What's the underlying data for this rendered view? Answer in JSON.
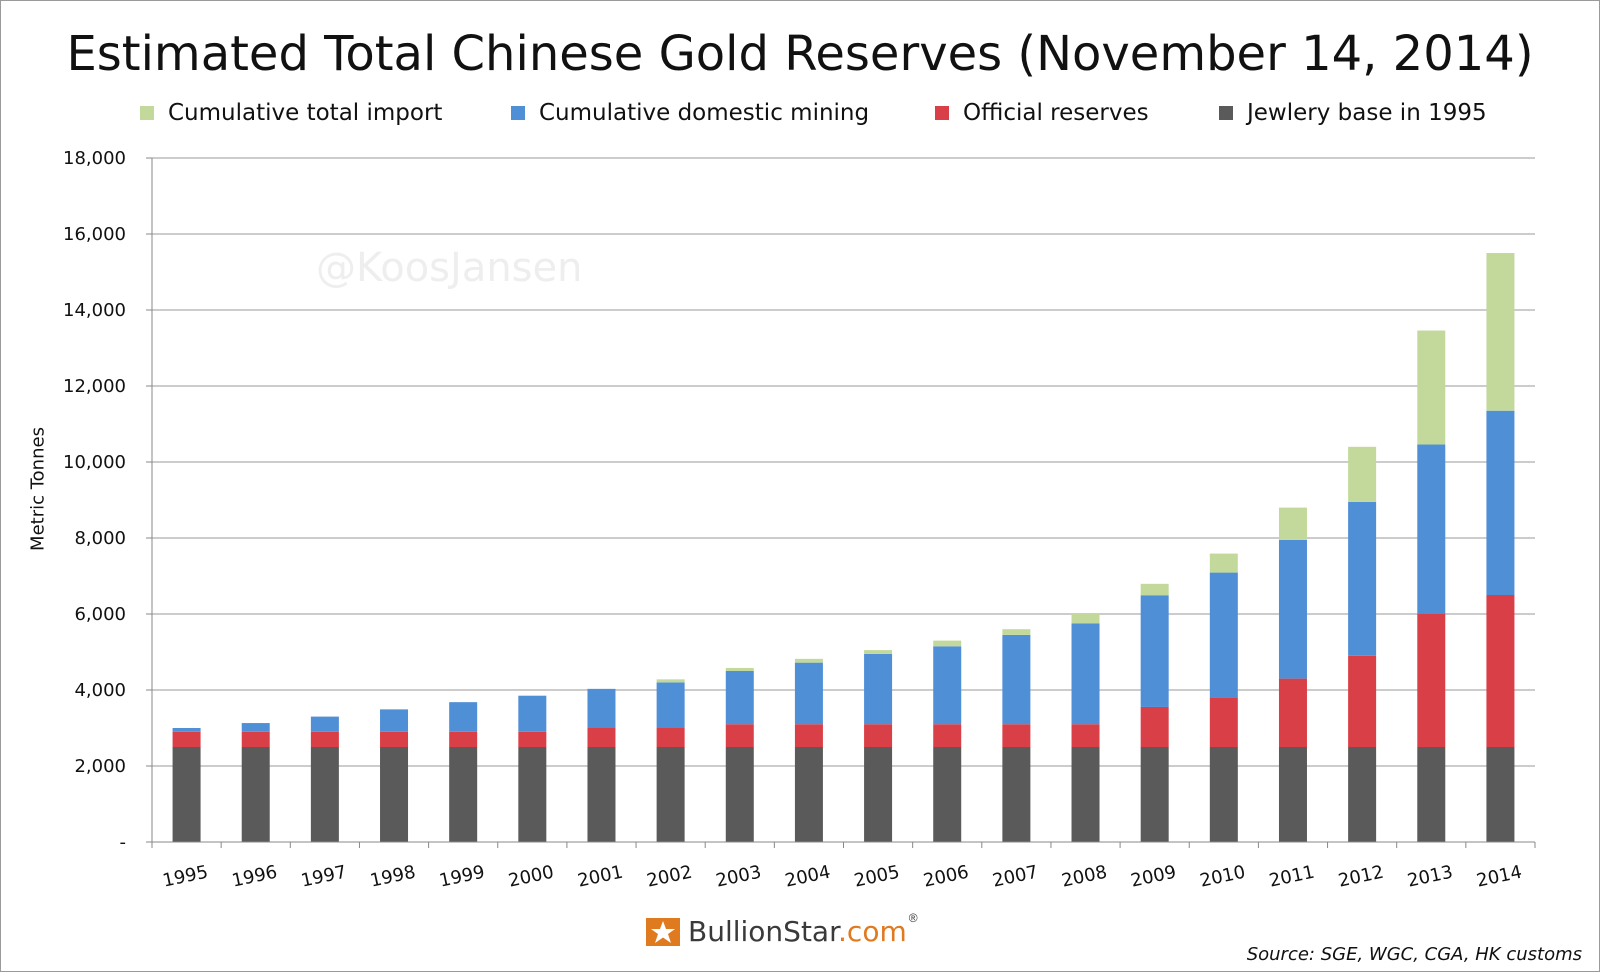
{
  "chart_data": {
    "type": "bar",
    "stacked": true,
    "title": "Estimated Total Chinese Gold Reserves (November 14, 2014)",
    "ylabel": "Metric Tonnes",
    "xlabel": "",
    "ylim": [
      0,
      18000
    ],
    "yticks": [
      0,
      2000,
      4000,
      6000,
      8000,
      10000,
      12000,
      14000,
      16000,
      18000
    ],
    "ytick_labels": [
      "-",
      "2,000",
      "4,000",
      "6,000",
      "8,000",
      "10,000",
      "12,000",
      "14,000",
      "16,000",
      "18,000"
    ],
    "grid": true,
    "legend_position": "top",
    "categories": [
      "1995",
      "1996",
      "1997",
      "1998",
      "1999",
      "2000",
      "2001",
      "2002",
      "2003",
      "2004",
      "2005",
      "2006",
      "2007",
      "2008",
      "2009",
      "2010",
      "2011",
      "2012",
      "2013",
      "2014"
    ],
    "series": [
      {
        "name": "Jewlery base in 1995",
        "color": "#5a5a5a",
        "values": [
          2500,
          2500,
          2500,
          2500,
          2500,
          2500,
          2500,
          2500,
          2500,
          2500,
          2500,
          2500,
          2500,
          2500,
          2500,
          2500,
          2500,
          2500,
          2500,
          2500
        ]
      },
      {
        "name": "Official reserves",
        "color": "#d93f46",
        "values": [
          400,
          400,
          400,
          400,
          400,
          400,
          500,
          500,
          600,
          600,
          600,
          600,
          600,
          600,
          1054,
          1300,
          1800,
          2400,
          3500,
          4000
        ]
      },
      {
        "name": "Cumulative domestic mining",
        "color": "#4f8fd6",
        "values": [
          100,
          230,
          400,
          590,
          780,
          950,
          1030,
          1200,
          1400,
          1620,
          1850,
          2050,
          2350,
          2650,
          2940,
          3290,
          3650,
          4050,
          4460,
          4850
        ]
      },
      {
        "name": "Cumulative total import",
        "color": "#c3d99b",
        "values": [
          0,
          0,
          0,
          0,
          0,
          0,
          0,
          80,
          80,
          100,
          100,
          150,
          150,
          250,
          300,
          500,
          850,
          1450,
          3000,
          4150
        ]
      }
    ],
    "legend_order": [
      "Cumulative total import",
      "Cumulative domestic mining",
      "Official reserves",
      "Jewlery base in 1995"
    ]
  },
  "watermark": "@KoosJansen",
  "logo": {
    "name": "BullionStar",
    "tld": ".com",
    "reg": "®",
    "icon": "bullionstar-logo-icon"
  },
  "source": "Source: SGE, WGC, CGA, HK customs"
}
